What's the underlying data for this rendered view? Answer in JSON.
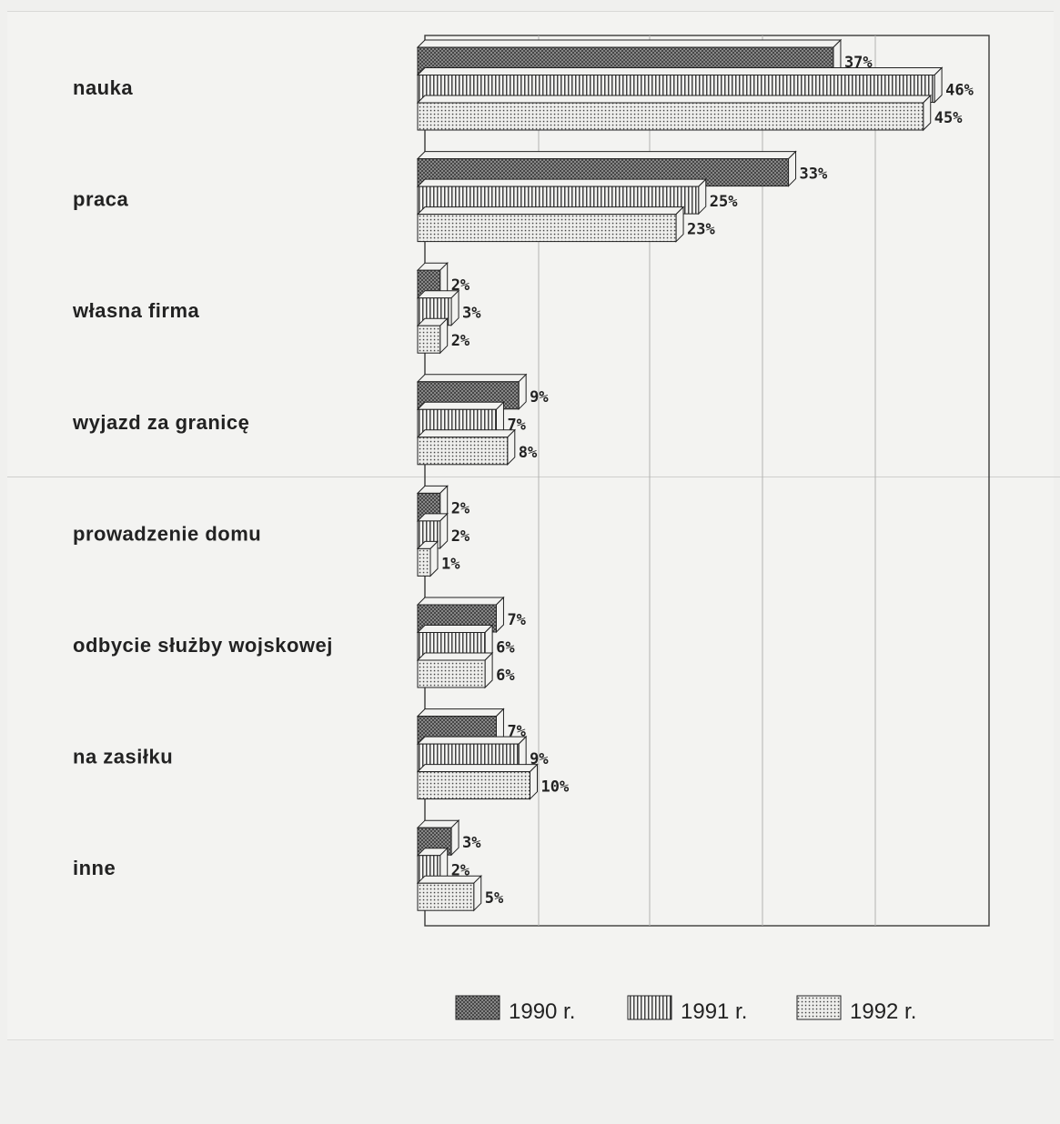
{
  "chart_data": {
    "type": "bar",
    "orientation": "horizontal",
    "categories": [
      "nauka",
      "praca",
      "własna firma",
      "wyjazd za granicę",
      "prowadzenie domu",
      "odbycie służby wojskowej",
      "na zasiłku",
      "inne"
    ],
    "series": [
      {
        "name": "1990 r.",
        "values": [
          37,
          33,
          2,
          9,
          2,
          7,
          7,
          3
        ],
        "labels": [
          "37%",
          "33%",
          "2%",
          "9%",
          "2%",
          "7%",
          "7%",
          "3%"
        ],
        "pattern": "crosshatch"
      },
      {
        "name": "1991 r.",
        "values": [
          46,
          25,
          3,
          7,
          2,
          6,
          9,
          2
        ],
        "labels": [
          "46%",
          "25%",
          "3%",
          "7%",
          "2%",
          "6%",
          "9%",
          "2%"
        ],
        "pattern": "vertical-lines"
      },
      {
        "name": "1992 r.",
        "values": [
          45,
          23,
          2,
          8,
          1,
          6,
          10,
          5
        ],
        "labels": [
          "45%",
          "23%",
          "2%",
          "8%",
          "1%",
          "6%",
          "10%",
          "5%"
        ],
        "pattern": "dots"
      }
    ],
    "xlim": [
      0,
      50
    ],
    "grid": true,
    "legend_position": "bottom"
  }
}
